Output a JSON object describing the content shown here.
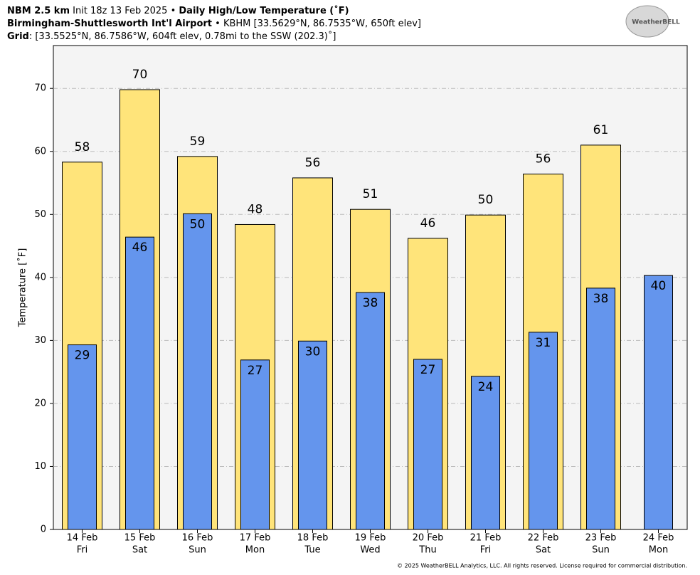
{
  "chart_data": {
    "type": "bar",
    "title_lines": [
      [
        {
          "text": "NBM 2.5 km",
          "bold": true
        },
        {
          "text": " Init 18z 13 Feb 2025 • ",
          "bold": false
        },
        {
          "text": "Daily High/Low Temperature (˚F)",
          "bold": true
        }
      ],
      [
        {
          "text": "Birmingham-Shuttlesworth Int'l Airport",
          "bold": true
        },
        {
          "text": " • KBHM [33.5629°N, 86.7535°W, 650ft elev]",
          "bold": false
        }
      ],
      [
        {
          "text": "Grid",
          "bold": true
        },
        {
          "text": ": [33.5525°N, 86.7586°W, 604ft elev, 0.78mi to the SSW (202.3)˚]",
          "bold": false
        }
      ]
    ],
    "logo": "WeatherBELL",
    "ylabel": "Temperature [˚F]",
    "footer": "© 2025 WeatherBELL Analytics, LLC. All rights reserved. License required for commercial distribution.",
    "categories": [
      "14 Feb",
      "15 Feb",
      "16 Feb",
      "17 Feb",
      "18 Feb",
      "19 Feb",
      "20 Feb",
      "21 Feb",
      "22 Feb",
      "23 Feb",
      "24 Feb"
    ],
    "weekdays": [
      "Fri",
      "Sat",
      "Sun",
      "Mon",
      "Tue",
      "Wed",
      "Thu",
      "Fri",
      "Sat",
      "Sun",
      "Mon"
    ],
    "series": [
      {
        "name": "High",
        "color": "#ffe47a",
        "values": [
          58.3,
          69.8,
          59.2,
          48.4,
          55.8,
          50.8,
          46.2,
          49.9,
          56.4,
          61.0,
          null
        ],
        "value_labels": [
          "58",
          "70",
          "59",
          "48",
          "56",
          "51",
          "46",
          "50",
          "56",
          "61",
          null
        ]
      },
      {
        "name": "Low",
        "color": "#6495ed",
        "values": [
          29.3,
          46.4,
          50.1,
          26.9,
          29.9,
          37.6,
          27.0,
          24.3,
          31.3,
          38.3,
          40.3
        ],
        "value_labels": [
          "29",
          "46",
          "50",
          "27",
          "30",
          "38",
          "27",
          "24",
          "31",
          "38",
          "40"
        ]
      }
    ],
    "ylim": [
      0,
      76.8
    ],
    "yticks": [
      0,
      10,
      20,
      30,
      40,
      50,
      60,
      70
    ],
    "grid": true
  }
}
